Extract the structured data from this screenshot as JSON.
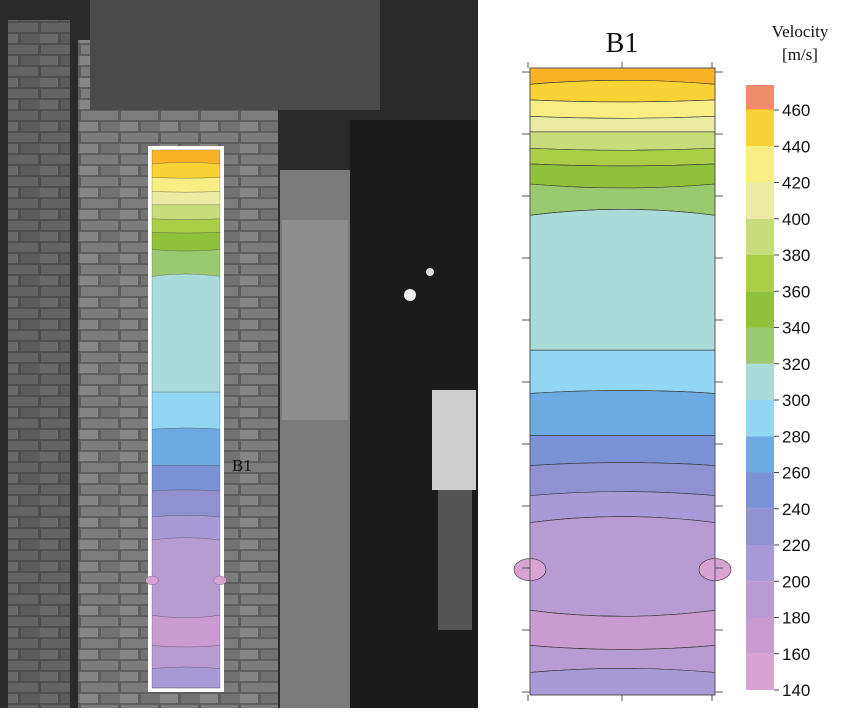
{
  "chart_data": {
    "type": "contour",
    "title": "B1",
    "photo_label": "B1",
    "colorbar_label": "Velocity",
    "colorbar_unit": "[m/s]",
    "levels": [
      140,
      160,
      180,
      200,
      220,
      240,
      260,
      280,
      300,
      320,
      340,
      360,
      380,
      400,
      420,
      440,
      460
    ],
    "colors": [
      "#d8a2d2",
      "#c99bd0",
      "#b99bd3",
      "#a89ad6",
      "#9191d2",
      "#7b93d6",
      "#6eaae2",
      "#92d6f4",
      "#a9dcd9",
      "#9bc96f",
      "#8fc13a",
      "#abcd48",
      "#c9dc7c",
      "#e9eca2",
      "#f9ee84",
      "#f9d335",
      "#f9b325"
    ],
    "top_color": "#f08c6c",
    "band_levels": [
      460,
      440,
      420,
      400,
      380,
      360,
      340,
      320,
      300,
      280,
      260,
      240,
      220,
      200,
      180,
      160,
      180,
      200,
      220
    ],
    "ellipse_level": 140
  }
}
